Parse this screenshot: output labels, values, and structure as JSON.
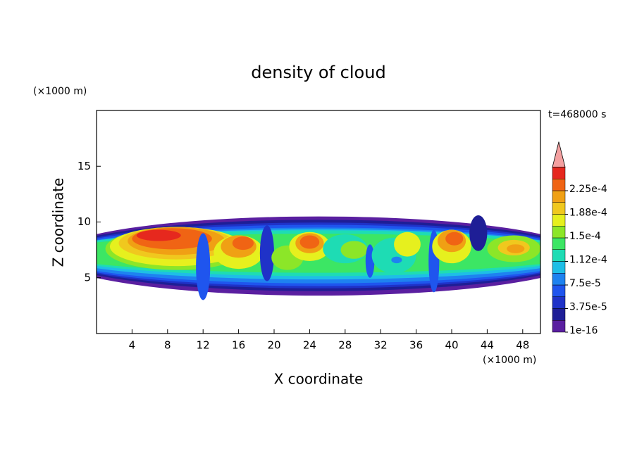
{
  "chart_data": {
    "type": "contour",
    "title": "density of cloud",
    "subtitle": "t=468000 s",
    "x_label": "X coordinate",
    "y_label": "Z coordinate",
    "x_unit": "(×1000 m)",
    "y_unit": "(×1000 m)",
    "xlim": [
      0,
      50
    ],
    "ylim": [
      0,
      20
    ],
    "xticks": [
      4,
      8,
      12,
      16,
      20,
      24,
      28,
      32,
      36,
      40,
      44,
      48
    ],
    "yticks": [
      5,
      10,
      15
    ],
    "colorbar": {
      "levels": [
        1e-16,
        1.875e-05,
        3.75e-05,
        5.625e-05,
        7.5e-05,
        9.375e-05,
        0.0001125,
        0.00013125,
        0.00015,
        0.00016875,
        0.0001875,
        0.00020625,
        0.000225,
        0.00024375
      ],
      "colors": [
        "#5a1fa0",
        "#1e1e96",
        "#1f32c8",
        "#1f55ee",
        "#1e82f0",
        "#1ebee6",
        "#1edcb4",
        "#3ce664",
        "#8ce628",
        "#e6f01e",
        "#f0c81e",
        "#f0a014",
        "#f06414",
        "#e6281e"
      ],
      "extend_color": "#f4a0a0",
      "ticks": [
        {
          "value": 1e-16,
          "label": "1e-16"
        },
        {
          "value": 3.75e-05,
          "label": "3.75e-5"
        },
        {
          "value": 7.5e-05,
          "label": "7.5e-5"
        },
        {
          "value": 0.0001125,
          "label": "1.12e-4"
        },
        {
          "value": 0.00015,
          "label": "1.5e-4"
        },
        {
          "value": 0.0001875,
          "label": "1.88e-4"
        },
        {
          "value": 0.000225,
          "label": "2.25e-4"
        }
      ]
    }
  }
}
